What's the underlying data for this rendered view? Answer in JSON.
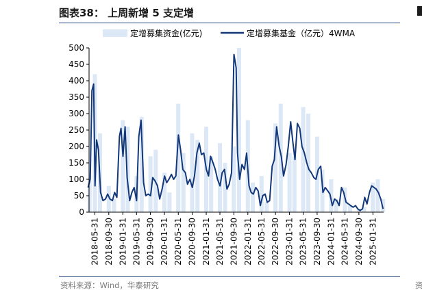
{
  "header": {
    "title": "图表38：  上周新增 5 支定增"
  },
  "footer": {
    "source": "资料来源：Wind，华泰研究"
  },
  "edge": {
    "source_glyph": "资"
  },
  "chart_data": {
    "type": "area",
    "title": "",
    "xlabel": "",
    "ylabel": "",
    "ylim": [
      0,
      500
    ],
    "yticks": [
      0,
      50,
      100,
      150,
      200,
      250,
      300,
      350,
      400,
      450,
      500
    ],
    "grid": false,
    "legend_position": "top",
    "colors": {
      "bars": "#dce8f5",
      "line": "#12387a"
    },
    "x_tick_labels": [
      "2018-05-31",
      "2018-09-30",
      "2019-01-31",
      "2019-05-31",
      "2019-09-30",
      "2020-01-31",
      "2020-05-31",
      "2020-09-30",
      "2021-01-31",
      "2021-05-31",
      "2021-09-30",
      "2022-01-31",
      "2022-05-31",
      "2022-09-30",
      "2023-01-31",
      "2023-05-31",
      "2023-09-30",
      "2024-01-31",
      "2024-05-31",
      "2024-09-30",
      "2025-01-31"
    ],
    "series": [
      {
        "name": "定增募集资金(亿元)",
        "kind": "bar",
        "x": [
          "2018-04-15",
          "2018-05-31",
          "2018-07-15",
          "2018-09-30",
          "2018-11-15",
          "2019-01-31",
          "2019-03-15",
          "2019-05-31",
          "2019-07-15",
          "2019-09-30",
          "2019-11-15",
          "2020-01-31",
          "2020-03-15",
          "2020-05-31",
          "2020-07-15",
          "2020-09-30",
          "2020-11-15",
          "2021-01-31",
          "2021-03-15",
          "2021-05-31",
          "2021-07-15",
          "2021-09-30",
          "2021-11-15",
          "2022-01-31",
          "2022-03-15",
          "2022-05-31",
          "2022-07-15",
          "2022-09-30",
          "2022-11-15",
          "2023-01-31",
          "2023-03-15",
          "2023-05-31",
          "2023-07-15",
          "2023-09-30",
          "2023-11-15",
          "2024-01-31",
          "2024-03-15",
          "2024-05-31",
          "2024-07-15",
          "2024-09-30",
          "2024-11-15",
          "2025-01-31",
          "2025-03-15",
          "2025-04-30"
        ],
        "values": [
          95,
          420,
          240,
          80,
          40,
          280,
          260,
          110,
          290,
          170,
          190,
          120,
          60,
          330,
          180,
          240,
          220,
          260,
          170,
          210,
          150,
          200,
          500,
          280,
          90,
          110,
          30,
          270,
          330,
          180,
          170,
          320,
          300,
          230,
          130,
          100,
          40,
          75,
          20,
          10,
          15,
          90,
          100,
          40
        ]
      },
      {
        "name": "定增募集基金（亿元）4WMA",
        "kind": "line",
        "x": [
          "2018-04-01",
          "2018-04-20",
          "2018-05-05",
          "2018-05-20",
          "2018-06-01",
          "2018-06-15",
          "2018-07-01",
          "2018-07-20",
          "2018-08-10",
          "2018-09-01",
          "2018-09-20",
          "2018-10-10",
          "2018-11-01",
          "2018-11-20",
          "2018-12-10",
          "2019-01-01",
          "2019-01-15",
          "2019-02-01",
          "2019-02-20",
          "2019-03-10",
          "2019-04-01",
          "2019-04-20",
          "2019-05-10",
          "2019-06-01",
          "2019-06-20",
          "2019-07-10",
          "2019-08-01",
          "2019-08-20",
          "2019-09-10",
          "2019-10-01",
          "2019-10-20",
          "2019-11-10",
          "2019-12-01",
          "2019-12-20",
          "2020-01-10",
          "2020-02-01",
          "2020-02-20",
          "2020-03-10",
          "2020-04-01",
          "2020-04-20",
          "2020-05-10",
          "2020-06-01",
          "2020-06-20",
          "2020-07-10",
          "2020-08-01",
          "2020-08-20",
          "2020-09-10",
          "2020-10-01",
          "2020-10-20",
          "2020-11-10",
          "2020-12-01",
          "2020-12-20",
          "2021-01-10",
          "2021-02-01",
          "2021-02-20",
          "2021-03-10",
          "2021-04-01",
          "2021-04-20",
          "2021-05-10",
          "2021-06-01",
          "2021-06-20",
          "2021-07-10",
          "2021-08-01",
          "2021-08-20",
          "2021-09-10",
          "2021-10-01",
          "2021-10-20",
          "2021-11-01",
          "2021-11-20",
          "2021-12-10",
          "2022-01-01",
          "2022-01-20",
          "2022-02-10",
          "2022-03-01",
          "2022-03-20",
          "2022-04-10",
          "2022-05-01",
          "2022-05-20",
          "2022-06-10",
          "2022-07-01",
          "2022-07-20",
          "2022-08-10",
          "2022-09-01",
          "2022-09-20",
          "2022-10-10",
          "2022-11-01",
          "2022-11-20",
          "2022-12-10",
          "2023-01-01",
          "2023-01-20",
          "2023-02-10",
          "2023-03-01",
          "2023-03-20",
          "2023-04-10",
          "2023-05-01",
          "2023-05-20",
          "2023-06-10",
          "2023-07-01",
          "2023-07-20",
          "2023-08-10",
          "2023-09-01",
          "2023-09-20",
          "2023-10-10",
          "2023-11-01",
          "2023-11-20",
          "2023-12-10",
          "2024-01-01",
          "2024-01-20",
          "2024-02-10",
          "2024-03-01",
          "2024-03-20",
          "2024-04-10",
          "2024-05-01",
          "2024-05-20",
          "2024-06-10",
          "2024-07-01",
          "2024-07-20",
          "2024-08-10",
          "2024-09-01",
          "2024-09-20",
          "2024-10-10",
          "2024-11-01",
          "2024-11-20",
          "2024-12-10",
          "2025-01-01",
          "2025-01-20",
          "2025-02-10",
          "2025-03-01",
          "2025-03-20",
          "2025-04-10",
          "2025-04-30"
        ],
        "values": [
          75,
          100,
          370,
          390,
          80,
          220,
          190,
          60,
          35,
          40,
          55,
          40,
          35,
          60,
          45,
          230,
          255,
          170,
          260,
          105,
          35,
          60,
          75,
          35,
          230,
          280,
          90,
          50,
          55,
          50,
          105,
          95,
          80,
          40,
          70,
          110,
          90,
          100,
          115,
          100,
          110,
          235,
          190,
          130,
          120,
          85,
          100,
          75,
          110,
          180,
          210,
          175,
          180,
          130,
          110,
          170,
          150,
          130,
          100,
          80,
          120,
          130,
          70,
          85,
          120,
          480,
          440,
          180,
          100,
          145,
          130,
          180,
          80,
          60,
          55,
          75,
          65,
          20,
          50,
          55,
          30,
          35,
          140,
          160,
          260,
          200,
          170,
          110,
          145,
          200,
          275,
          215,
          160,
          270,
          255,
          200,
          180,
          150,
          130,
          120,
          105,
          100,
          130,
          140,
          60,
          75,
          65,
          55,
          20,
          40,
          35,
          20,
          75,
          60,
          30,
          25,
          20,
          15,
          20,
          10,
          5,
          10,
          45,
          25,
          60,
          80,
          75,
          70,
          60,
          40,
          10
        ]
      }
    ]
  }
}
